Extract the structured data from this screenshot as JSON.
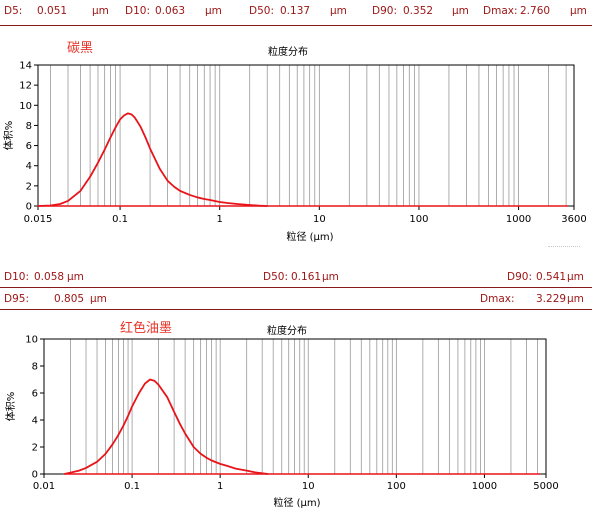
{
  "panel1": {
    "stats": {
      "d5_label": "D5:",
      "d5_value": "0.051",
      "d5_unit": "μm",
      "d10_label": "D10:",
      "d10_value": "0.063",
      "d10_unit": "μm",
      "d50_label": "D50:",
      "d50_value": "0.137",
      "d50_unit": "μm",
      "d90_label": "D90:",
      "d90_value": "0.352",
      "d90_unit": "μm",
      "dmax_label": "Dmax:",
      "dmax_value": "2.760",
      "dmax_unit": "μm"
    },
    "sample_label": "碳黑"
  },
  "panel2": {
    "stats_row1": {
      "d10_label": "D10:",
      "d10_value": "0.058",
      "d10_unit": "μm",
      "d50_label": "D50:",
      "d50_value": "0.161",
      "d50_unit": "μm",
      "d90_label": "D90:",
      "d90_value": "0.541",
      "d90_unit": "μm"
    },
    "stats_row2": {
      "d95_label": "D95:",
      "d95_value": "0.805",
      "d95_unit": "μm",
      "dmax_label": "Dmax:",
      "dmax_value": "3.229",
      "dmax_unit": "μm"
    },
    "sample_label": "红色油墨"
  },
  "colors": {
    "curve": "#e8141a",
    "stat_text": "#9c1414",
    "label": "#e8342a",
    "grid": "#999999"
  },
  "chart_data": [
    {
      "type": "line",
      "title": "粒度分布",
      "xlabel": "粒径 (μm)",
      "ylabel": "体积%",
      "xscale": "log",
      "xlim": [
        0.015,
        3600
      ],
      "ylim": [
        0,
        14
      ],
      "xticks": [
        0.015,
        0.1,
        1,
        10,
        100,
        1000,
        3600
      ],
      "xtick_labels": [
        "0.015",
        "0.1",
        "1",
        "10",
        "100",
        "1000",
        "3600"
      ],
      "yticks": [
        0,
        2,
        4,
        6,
        8,
        10,
        12,
        14
      ],
      "ytick_labels": [
        "0",
        "2",
        "4",
        "6",
        "8",
        "10",
        "12",
        "14"
      ],
      "grid": "vertical",
      "series": [
        {
          "x": [
            0.015,
            0.02,
            0.025,
            0.03,
            0.04,
            0.05,
            0.06,
            0.07,
            0.08,
            0.09,
            0.1,
            0.11,
            0.12,
            0.13,
            0.14,
            0.16,
            0.18,
            0.2,
            0.25,
            0.3,
            0.35,
            0.4,
            0.5,
            0.6,
            0.7,
            0.8,
            1.0,
            1.2,
            1.5,
            2.0,
            2.5,
            3.0
          ],
          "y": [
            0,
            0.05,
            0.2,
            0.5,
            1.5,
            2.9,
            4.3,
            5.6,
            6.8,
            7.8,
            8.6,
            9.0,
            9.2,
            9.1,
            8.8,
            7.9,
            6.8,
            5.7,
            3.7,
            2.5,
            1.9,
            1.5,
            1.1,
            0.85,
            0.7,
            0.6,
            0.4,
            0.3,
            0.2,
            0.1,
            0.03,
            0
          ]
        }
      ]
    },
    {
      "type": "line",
      "title": "粒度分布",
      "xlabel": "粒径 (μm)",
      "ylabel": "体积%",
      "xscale": "log",
      "xlim": [
        0.01,
        5000
      ],
      "ylim": [
        0,
        10
      ],
      "xticks": [
        0.01,
        0.1,
        1,
        10,
        100,
        1000,
        5000
      ],
      "xtick_labels": [
        "0.01",
        "0.1",
        "1",
        "10",
        "100",
        "1000",
        "5000"
      ],
      "yticks": [
        0,
        2,
        4,
        6,
        8,
        10
      ],
      "ytick_labels": [
        "0",
        "2",
        "4",
        "6",
        "8",
        "10"
      ],
      "grid": "vertical",
      "series": [
        {
          "x": [
            0.017,
            0.02,
            0.025,
            0.03,
            0.04,
            0.05,
            0.06,
            0.07,
            0.08,
            0.09,
            0.1,
            0.12,
            0.14,
            0.16,
            0.18,
            0.2,
            0.25,
            0.3,
            0.35,
            0.4,
            0.5,
            0.6,
            0.7,
            0.8,
            1.0,
            1.2,
            1.5,
            2.0,
            2.5,
            3.0,
            3.5
          ],
          "y": [
            0,
            0.1,
            0.25,
            0.45,
            0.9,
            1.5,
            2.2,
            2.9,
            3.6,
            4.3,
            5.0,
            6.0,
            6.7,
            7.0,
            6.9,
            6.6,
            5.7,
            4.6,
            3.7,
            3.0,
            2.0,
            1.5,
            1.2,
            1.0,
            0.75,
            0.6,
            0.4,
            0.25,
            0.12,
            0.05,
            0
          ]
        }
      ]
    }
  ]
}
